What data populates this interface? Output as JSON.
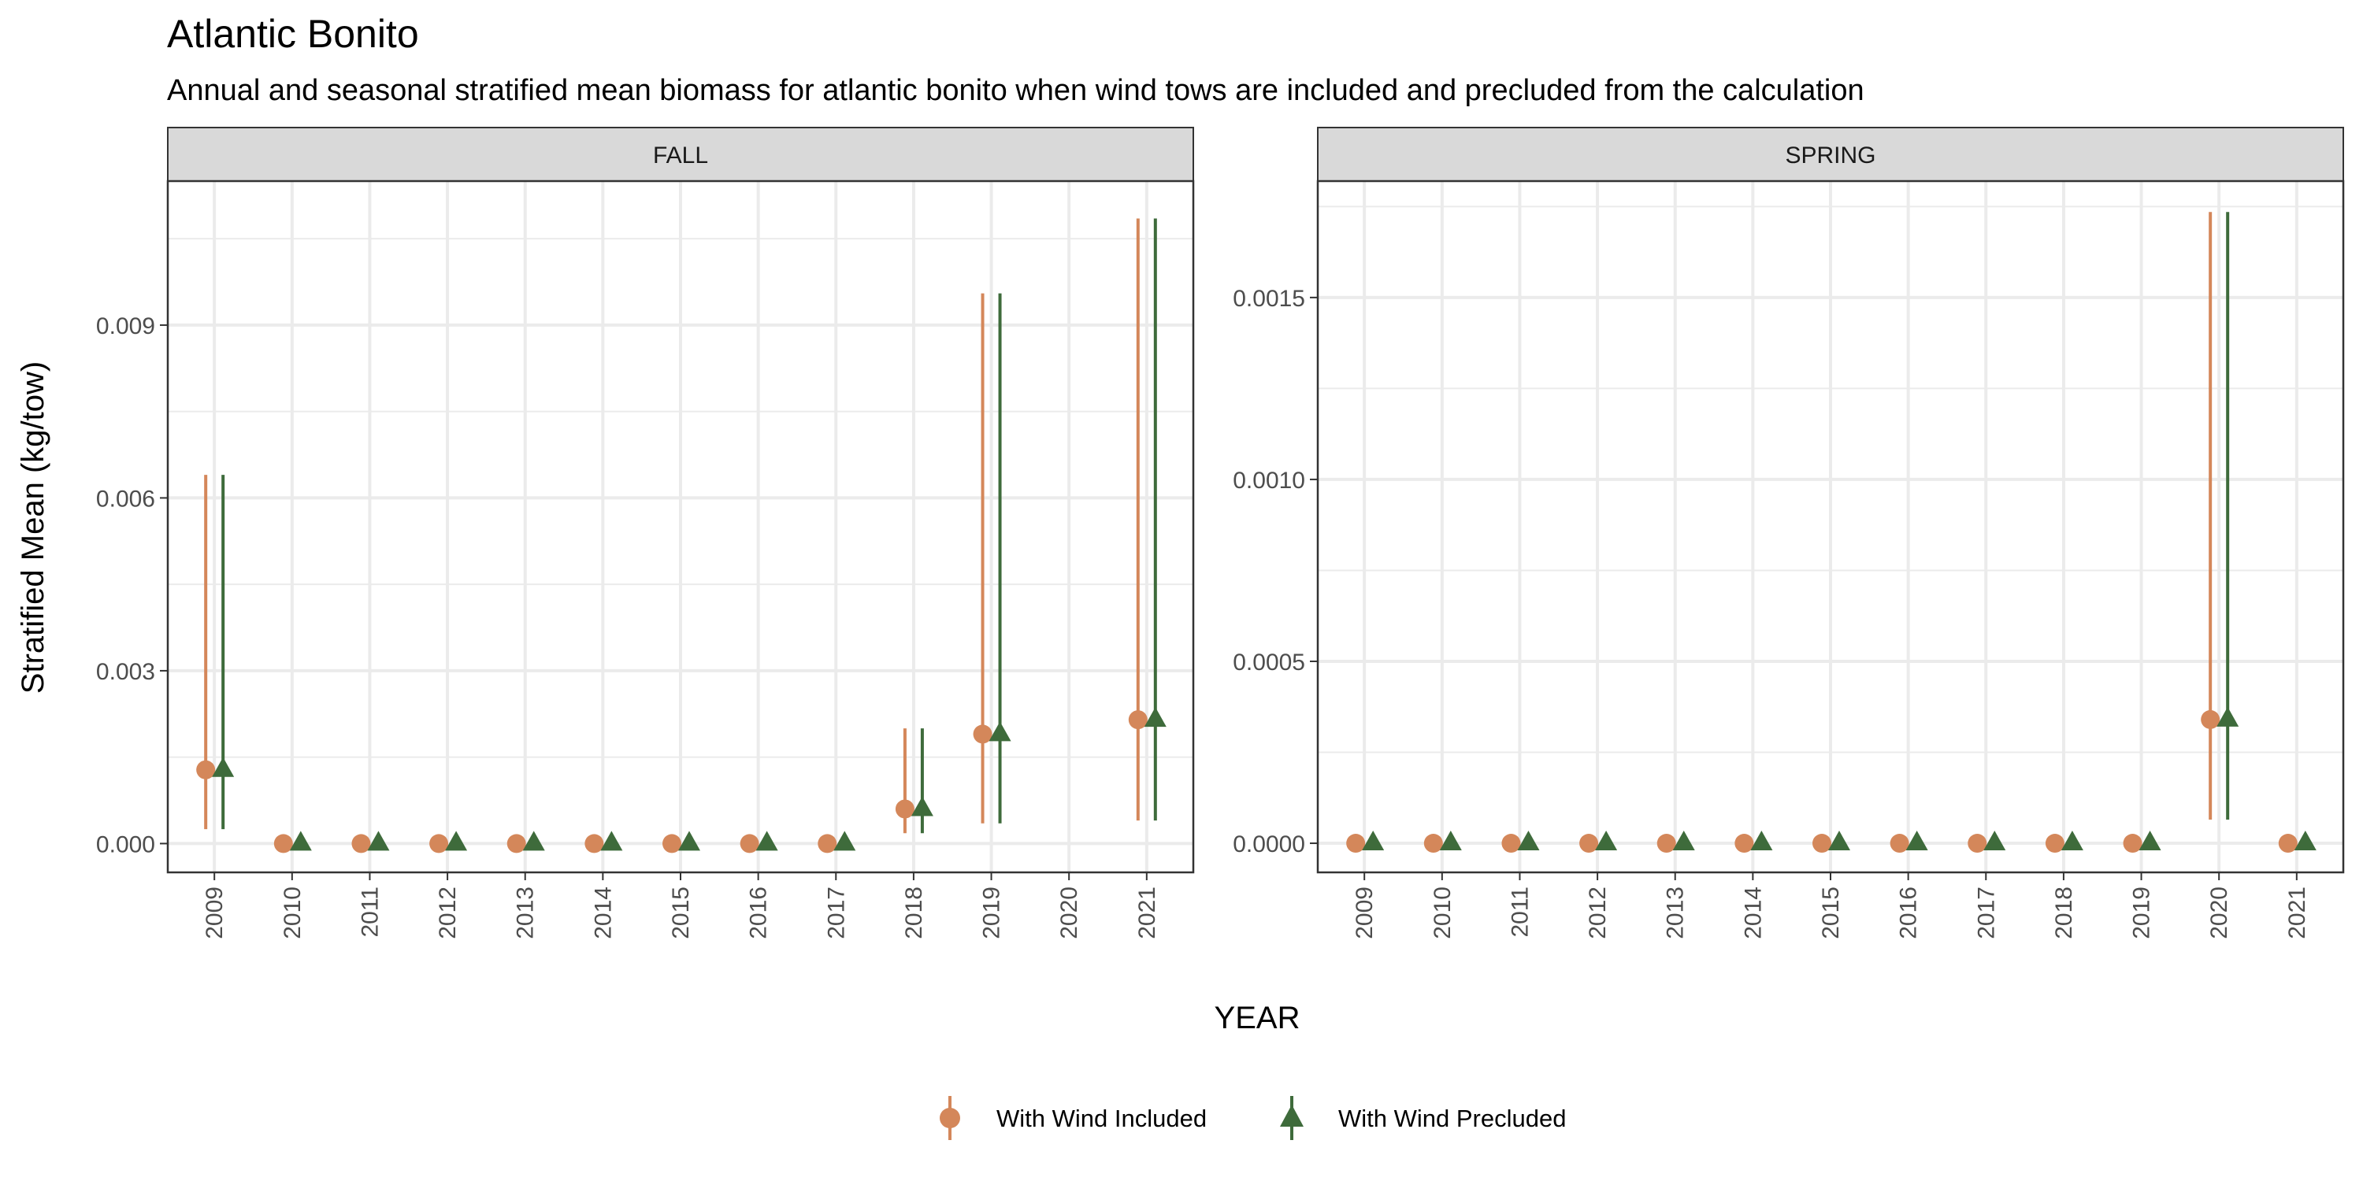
{
  "chart_data": {
    "title": "Atlantic Bonito",
    "subtitle": "Annual and seasonal stratified mean biomass for atlantic bonito when wind tows are included and precluded from the calculation",
    "xlabel": "YEAR",
    "ylabel": "Stratified Mean (kg/tow)",
    "colors": {
      "included": "#D4875A",
      "precluded": "#3E6B3B",
      "strip_bg": "#D9D9D9",
      "grid": "#EBEBEB"
    },
    "legend": {
      "position": "bottom",
      "entries": [
        {
          "label": "With Wind Included",
          "marker": "circle"
        },
        {
          "label": "With Wind Precluded",
          "marker": "triangle"
        }
      ]
    },
    "panels": [
      {
        "type": "scatter",
        "name": "FALL",
        "categories": [
          "2009",
          "2010",
          "2011",
          "2012",
          "2013",
          "2014",
          "2015",
          "2016",
          "2017",
          "2018",
          "2019",
          "2020",
          "2021"
        ],
        "ylim": [
          -0.0005,
          0.0115
        ],
        "yticks": [
          0.0,
          0.003,
          0.006,
          0.009
        ],
        "ytick_labels": [
          "0.000",
          "0.003",
          "0.006",
          "0.009"
        ],
        "series": [
          {
            "name": "With Wind Included",
            "values": [
              0.00128,
              0.0,
              0.0,
              0.0,
              0.0,
              0.0,
              0.0,
              0.0,
              0.0,
              0.0006,
              0.0019,
              null,
              0.00215
            ],
            "lower": [
              0.00025,
              null,
              null,
              null,
              null,
              null,
              null,
              null,
              null,
              0.00018,
              0.00035,
              null,
              0.0004
            ],
            "upper": [
              0.0064,
              null,
              null,
              null,
              null,
              null,
              null,
              null,
              null,
              0.002,
              0.00955,
              null,
              0.01085
            ]
          },
          {
            "name": "With Wind Precluded",
            "values": [
              0.00128,
              0.0,
              0.0,
              0.0,
              0.0,
              0.0,
              0.0,
              0.0,
              0.0,
              0.0006,
              0.0019,
              null,
              0.00215
            ],
            "lower": [
              0.00025,
              null,
              null,
              null,
              null,
              null,
              null,
              null,
              null,
              0.00018,
              0.00035,
              null,
              0.0004
            ],
            "upper": [
              0.0064,
              null,
              null,
              null,
              null,
              null,
              null,
              null,
              null,
              0.002,
              0.00955,
              null,
              0.01085
            ]
          }
        ]
      },
      {
        "type": "scatter",
        "name": "SPRING",
        "categories": [
          "2009",
          "2010",
          "2011",
          "2012",
          "2013",
          "2014",
          "2015",
          "2016",
          "2017",
          "2018",
          "2019",
          "2020",
          "2021"
        ],
        "ylim": [
          -8e-05,
          0.00182
        ],
        "yticks": [
          0.0,
          0.0005,
          0.001,
          0.0015
        ],
        "ytick_labels": [
          "0.0000",
          "0.0005",
          "0.0010",
          "0.0015"
        ],
        "series": [
          {
            "name": "With Wind Included",
            "values": [
              0.0,
              0.0,
              0.0,
              0.0,
              0.0,
              0.0,
              0.0,
              0.0,
              0.0,
              0.0,
              0.0,
              0.00034,
              0.0
            ],
            "lower": [
              null,
              null,
              null,
              null,
              null,
              null,
              null,
              null,
              null,
              null,
              null,
              6.5e-05,
              null
            ],
            "upper": [
              null,
              null,
              null,
              null,
              null,
              null,
              null,
              null,
              null,
              null,
              null,
              0.001735,
              null
            ]
          },
          {
            "name": "With Wind Precluded",
            "values": [
              0.0,
              0.0,
              0.0,
              0.0,
              0.0,
              0.0,
              0.0,
              0.0,
              0.0,
              0.0,
              0.0,
              0.00034,
              0.0
            ],
            "lower": [
              null,
              null,
              null,
              null,
              null,
              null,
              null,
              null,
              null,
              null,
              null,
              6.5e-05,
              null
            ],
            "upper": [
              null,
              null,
              null,
              null,
              null,
              null,
              null,
              null,
              null,
              null,
              null,
              0.001735,
              null
            ]
          }
        ]
      }
    ]
  }
}
